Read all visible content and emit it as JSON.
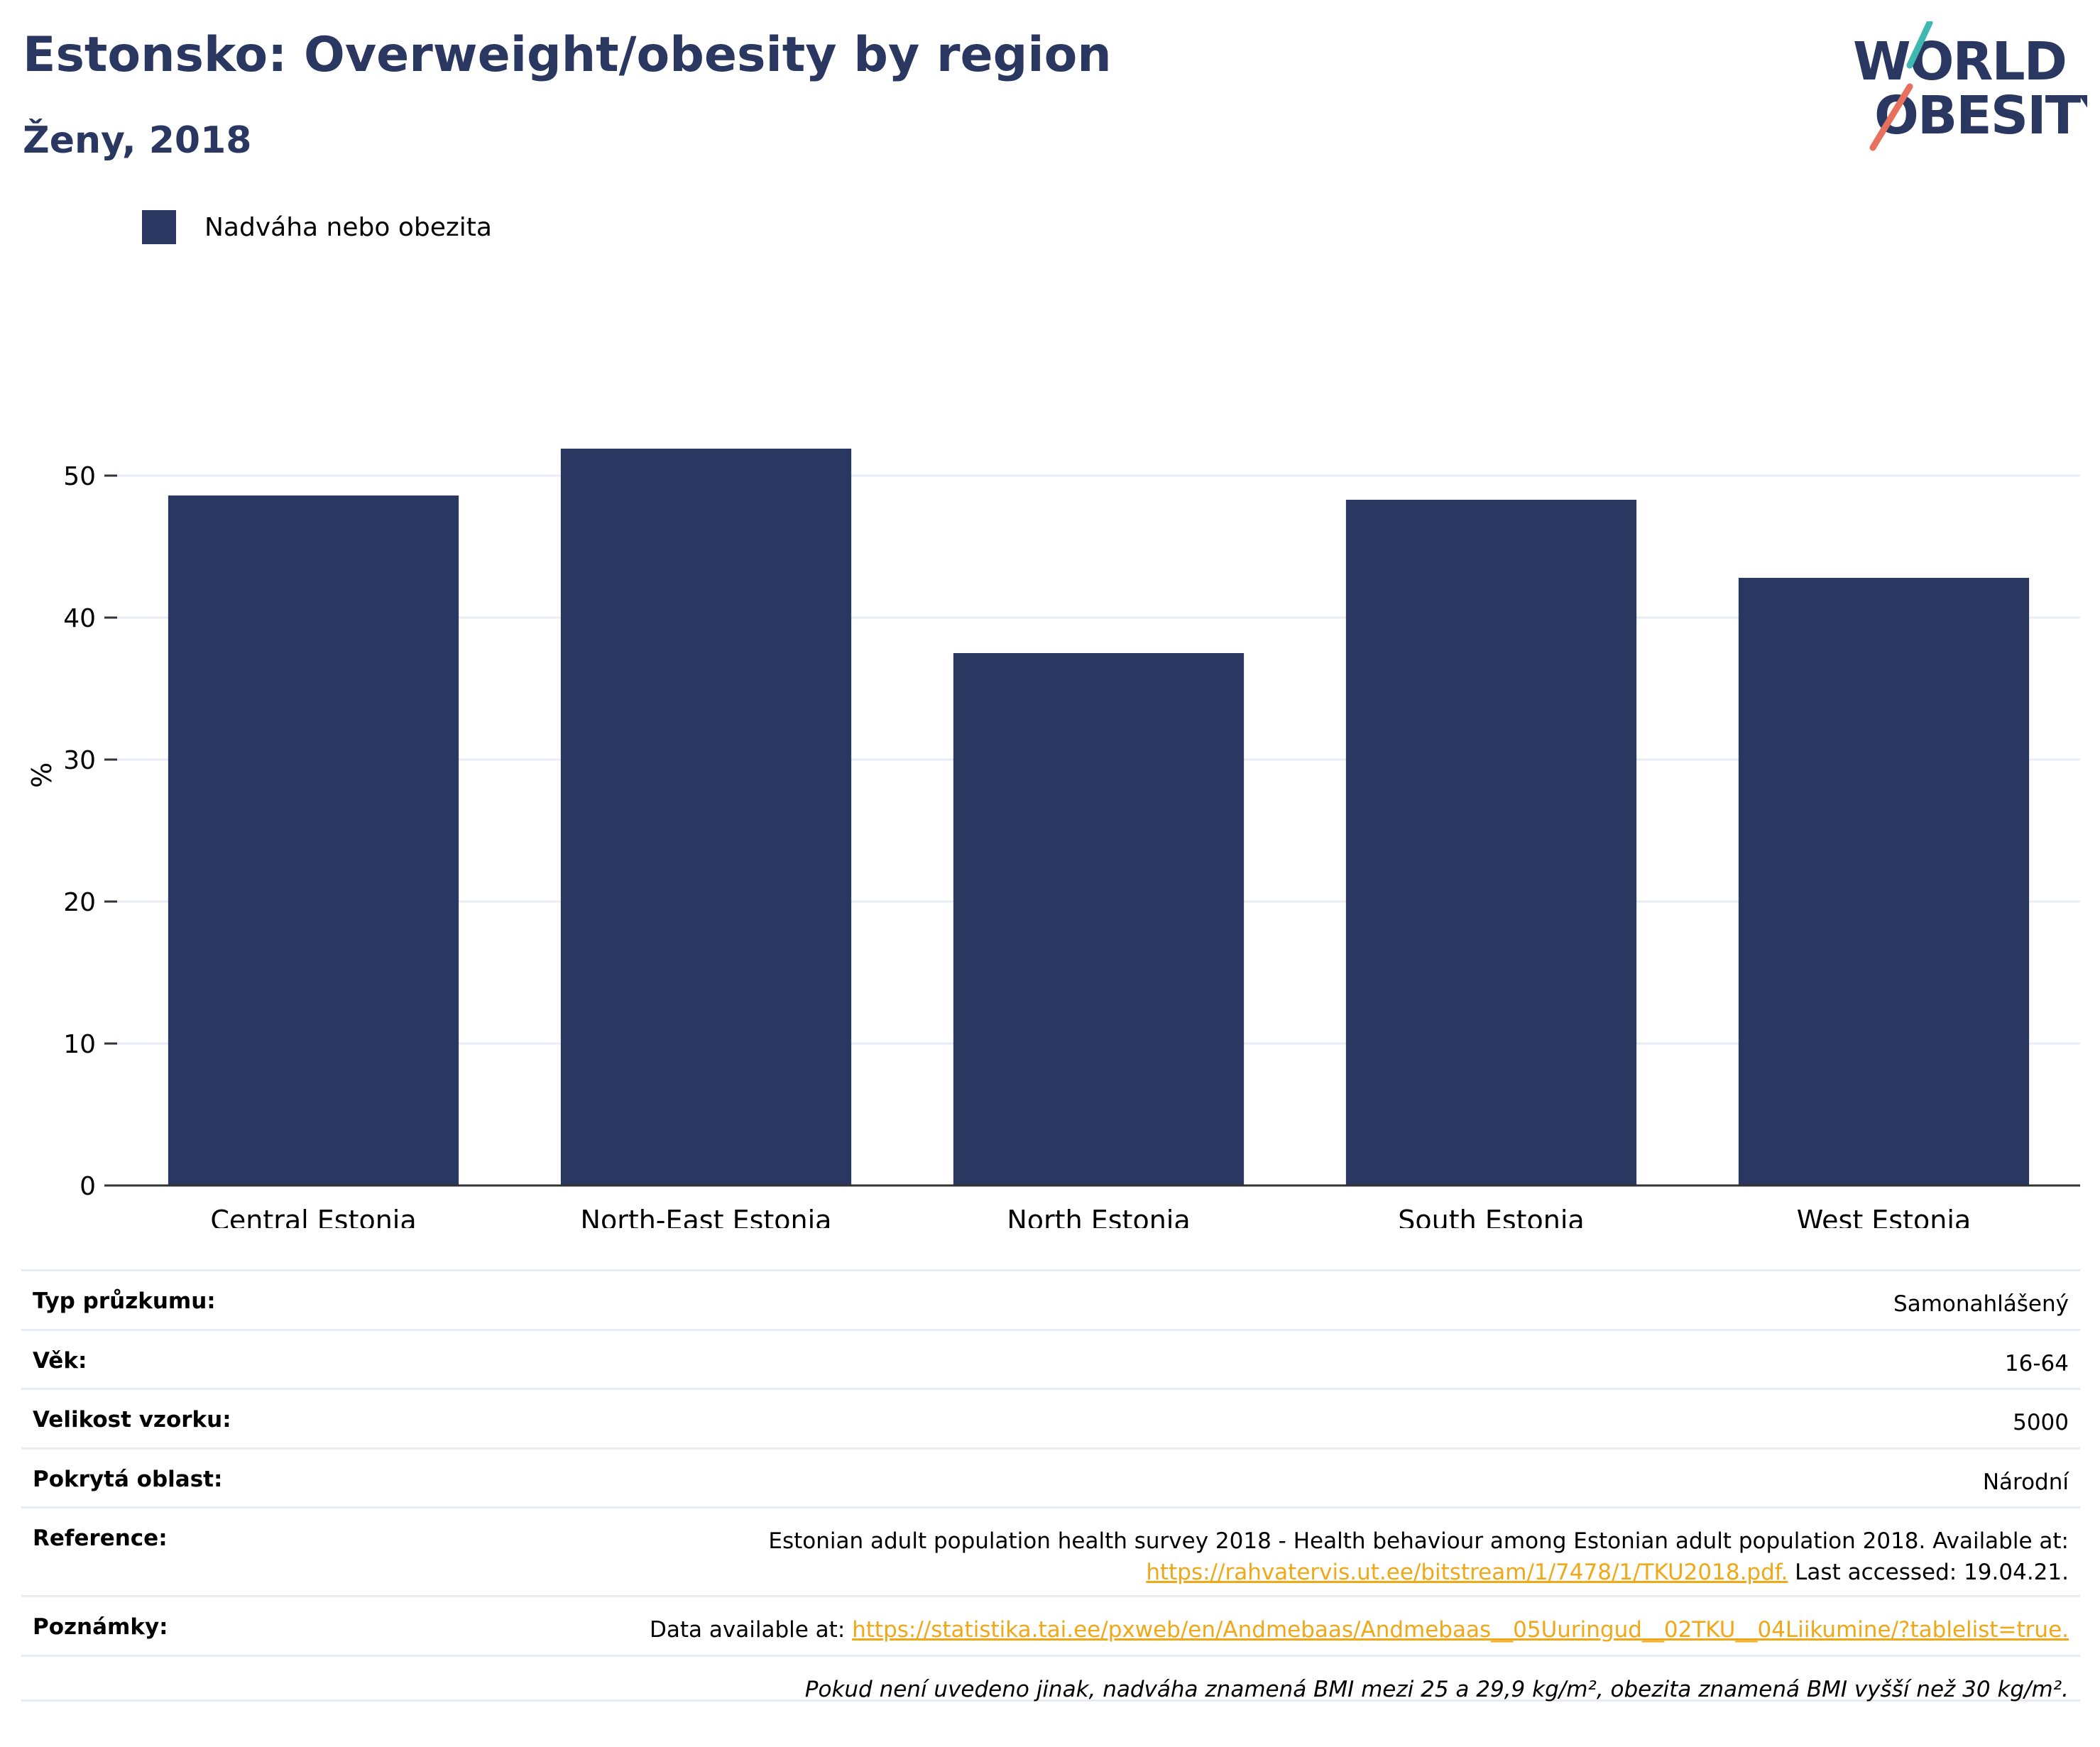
{
  "header": {
    "title": "Estonsko: Overweight/obesity by region",
    "subtitle": "Ženy, 2018"
  },
  "logo": {
    "line1": "WORLD",
    "line2": "OBESITY",
    "colors": {
      "text": "#2a3761",
      "slash_top": "#3fb8b2",
      "slash_bottom": "#e8705f"
    }
  },
  "legend": {
    "label": "Nadváha nebo obezita",
    "color": "#2a3761"
  },
  "chart_data": {
    "type": "bar",
    "title": "Estonsko: Overweight/obesity by region",
    "subtitle": "Ženy, 2018",
    "categories": [
      "Central Estonia",
      "North-East Estonia",
      "North Estonia",
      "South Estonia",
      "West Estonia"
    ],
    "series": [
      {
        "name": "Nadváha nebo obezita",
        "values": [
          48.6,
          51.9,
          37.5,
          48.3,
          42.8
        ],
        "color": "#2a3761"
      }
    ],
    "xlabel": "",
    "ylabel": "%",
    "ylim": [
      0,
      55
    ],
    "yticks": [
      0,
      10,
      20,
      30,
      40,
      50
    ],
    "grid": true,
    "legend_position": "top-left"
  },
  "info": {
    "rows": [
      {
        "label": "Typ průzkumu:",
        "value": "Samonahlášený"
      },
      {
        "label": "Věk:",
        "value": "16-64"
      },
      {
        "label": "Velikost vzorku:",
        "value": "5000"
      },
      {
        "label": "Pokrytá oblast:",
        "value": "Národní"
      }
    ],
    "reference": {
      "label": "Reference:",
      "text": "Estonian adult population health survey 2018 - Health behaviour among Estonian adult population 2018. Available at:",
      "link": "https://rahvatervis.ut.ee/bitstream/1/7478/1/TKU2018.pdf.",
      "suffix": " Last accessed: 19.04.21."
    },
    "notes": {
      "label": "Poznámky:",
      "prefix": "Data available at: ",
      "link": "https://statistika.tai.ee/pxweb/en/Andmebaas/Andmebaas__05Uuringud__02TKU__04Liikumine/?tablelist=true."
    },
    "footnote": "Pokud není uvedeno jinak, nadváha znamená BMI mezi 25 a 29,9 kg/m², obezita znamená BMI vyšší než 30 kg/m²."
  }
}
